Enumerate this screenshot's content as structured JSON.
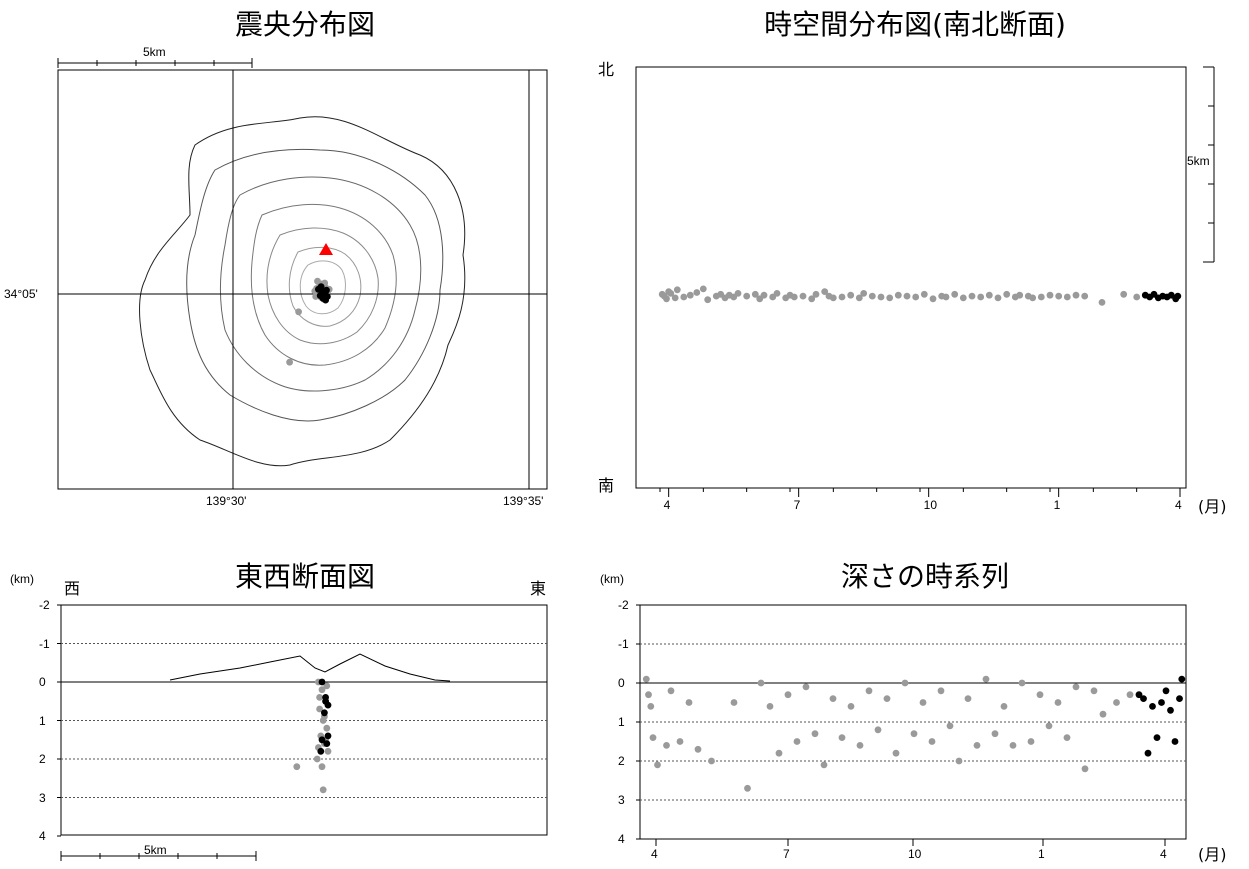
{
  "colors": {
    "past": "#9a9a9a",
    "recent": "#000000",
    "crater": "#ff0000",
    "contour_outer": "#222222",
    "contour_inner": "#8a8a8a"
  },
  "panels": {
    "epicenter": {
      "title": "震央分布図",
      "scale_label": "5km",
      "lat_label": "34°05'",
      "lon_labels": [
        "139°30'",
        "139°35'"
      ]
    },
    "timespace": {
      "title": "時空間分布図(南北断面)",
      "north": "北",
      "south": "南",
      "scale_label": "5km",
      "month_unit": "(月)",
      "month_ticks": [
        "4",
        "7",
        "10",
        "1",
        "4"
      ]
    },
    "eastwest": {
      "title": "東西断面図",
      "west": "西",
      "east": "東",
      "depth_unit": "(km)",
      "depth_ticks": [
        "-2",
        "-1",
        "0",
        "1",
        "2",
        "3",
        "4"
      ],
      "scale_label": "5km"
    },
    "depthtime": {
      "title": "深さの時系列",
      "depth_unit": "(km)",
      "depth_ticks": [
        "-2",
        "-1",
        "0",
        "1",
        "2",
        "3",
        "4"
      ],
      "month_unit": "(月)",
      "month_ticks": [
        "4",
        "7",
        "10",
        "1",
        "4"
      ]
    }
  },
  "chart_data": [
    {
      "type": "scatter",
      "title": "震央分布図",
      "ylabel": "34°05'",
      "xlabel": "139°30'",
      "series": [
        {
          "values": [
            [
              -0.3,
              0.6
            ],
            [
              0.0,
              0.9
            ],
            [
              -0.2,
              0.2
            ],
            [
              0.4,
              0.5
            ],
            [
              -0.6,
              0.4
            ],
            [
              0.2,
              -0.2
            ],
            [
              -0.1,
              -0.6
            ],
            [
              0.3,
              1.0
            ],
            [
              -0.4,
              -0.1
            ],
            [
              0.6,
              0.0
            ],
            [
              -0.8,
              0.1
            ],
            [
              0.1,
              0.3
            ],
            [
              -0.2,
              -0.3
            ],
            [
              0.5,
              -0.4
            ],
            [
              -2.6,
              -2.2
            ],
            [
              -0.5,
              1.2
            ],
            [
              0.2,
              -0.8
            ],
            [
              -0.7,
              -0.5
            ],
            [
              0.8,
              0.3
            ],
            [
              -3.6,
              -7.8
            ]
          ]
        },
        {
          "values": [
            [
              0.0,
              0.1
            ],
            [
              0.3,
              -0.2
            ],
            [
              -0.2,
              -0.4
            ],
            [
              0.5,
              0.2
            ],
            [
              -0.4,
              0.3
            ],
            [
              0.1,
              -0.7
            ],
            [
              0.6,
              -0.5
            ],
            [
              -0.1,
              0.6
            ],
            [
              0.4,
              -0.9
            ]
          ]
        }
      ]
    },
    {
      "type": "scatter",
      "title": "時空間分布図(南北断面)",
      "xlabel": "(月)",
      "x_ticks": [
        "4",
        "7",
        "10",
        "1",
        "4"
      ],
      "series": [
        {
          "values": [
            [
              0.05,
              0.3
            ],
            [
              0.1,
              0.1
            ],
            [
              0.15,
              -0.2
            ],
            [
              0.2,
              0.6
            ],
            [
              0.25,
              0.4
            ],
            [
              0.35,
              -0.1
            ],
            [
              0.4,
              0.8
            ],
            [
              0.55,
              0.0
            ],
            [
              0.7,
              0.2
            ],
            [
              0.85,
              0.5
            ],
            [
              1.0,
              0.9
            ],
            [
              1.1,
              -0.3
            ],
            [
              1.3,
              0.1
            ],
            [
              1.4,
              0.3
            ],
            [
              1.5,
              -0.1
            ],
            [
              1.6,
              0.2
            ],
            [
              1.7,
              0.0
            ],
            [
              1.8,
              0.4
            ],
            [
              2.0,
              0.1
            ],
            [
              2.2,
              0.3
            ],
            [
              2.3,
              -0.2
            ],
            [
              2.4,
              0.2
            ],
            [
              2.6,
              0.0
            ],
            [
              2.7,
              0.4
            ],
            [
              2.9,
              -0.1
            ],
            [
              3.0,
              0.2
            ],
            [
              3.1,
              0.0
            ],
            [
              3.3,
              0.1
            ],
            [
              3.5,
              -0.2
            ],
            [
              3.6,
              0.3
            ],
            [
              3.8,
              0.6
            ],
            [
              3.9,
              0.1
            ],
            [
              4.0,
              -0.1
            ],
            [
              4.2,
              0.0
            ],
            [
              4.4,
              0.2
            ],
            [
              4.6,
              -0.1
            ],
            [
              4.7,
              0.4
            ],
            [
              4.9,
              0.1
            ],
            [
              5.1,
              0.0
            ],
            [
              5.3,
              -0.1
            ],
            [
              5.5,
              0.2
            ],
            [
              5.7,
              0.1
            ],
            [
              5.9,
              0.0
            ],
            [
              6.1,
              0.3
            ],
            [
              6.3,
              -0.2
            ],
            [
              6.5,
              0.1
            ],
            [
              6.6,
              0.0
            ],
            [
              6.8,
              0.3
            ],
            [
              7.0,
              -0.1
            ],
            [
              7.2,
              0.1
            ],
            [
              7.4,
              0.0
            ],
            [
              7.6,
              0.2
            ],
            [
              7.8,
              -0.1
            ],
            [
              8.0,
              0.3
            ],
            [
              8.2,
              0.0
            ],
            [
              8.3,
              0.2
            ],
            [
              8.5,
              0.1
            ],
            [
              8.6,
              -0.1
            ],
            [
              8.8,
              0.0
            ],
            [
              9.0,
              0.2
            ],
            [
              9.2,
              0.1
            ],
            [
              9.4,
              0.0
            ],
            [
              9.6,
              0.2
            ],
            [
              9.8,
              0.1
            ],
            [
              10.2,
              -0.6
            ],
            [
              10.7,
              0.3
            ],
            [
              11.0,
              0.0
            ]
          ]
        },
        {
          "values": [
            [
              11.2,
              0.2
            ],
            [
              11.3,
              0.0
            ],
            [
              11.4,
              0.3
            ],
            [
              11.5,
              -0.1
            ],
            [
              11.6,
              0.1
            ],
            [
              11.7,
              0.0
            ],
            [
              11.8,
              0.2
            ],
            [
              11.9,
              -0.2
            ],
            [
              11.95,
              0.1
            ]
          ]
        }
      ]
    },
    {
      "type": "scatter",
      "title": "東西断面図",
      "xlabel": "5km",
      "ylabel": "(km)",
      "ylim": [
        4,
        -2
      ],
      "series": [
        {
          "values": [
            [
              -0.3,
              0.0
            ],
            [
              0.0,
              0.2
            ],
            [
              0.3,
              0.5
            ],
            [
              -0.2,
              0.7
            ],
            [
              0.1,
              1.0
            ],
            [
              0.4,
              1.2
            ],
            [
              -0.1,
              1.4
            ],
            [
              0.2,
              1.6
            ],
            [
              0.5,
              1.8
            ],
            [
              -0.4,
              2.0
            ],
            [
              0.0,
              2.2
            ],
            [
              0.3,
              1.5
            ],
            [
              -0.2,
              0.4
            ],
            [
              0.4,
              0.1
            ],
            [
              -2.1,
              2.2
            ],
            [
              0.1,
              2.8
            ],
            [
              -0.3,
              1.7
            ],
            [
              0.2,
              0.9
            ]
          ]
        },
        {
          "values": [
            [
              0.0,
              0.0
            ],
            [
              0.3,
              0.4
            ],
            [
              0.5,
              0.6
            ],
            [
              0.2,
              0.8
            ],
            [
              0.5,
              1.4
            ],
            [
              0.4,
              1.6
            ],
            [
              0.0,
              1.5
            ],
            [
              -0.1,
              1.8
            ],
            [
              0.3,
              0.5
            ]
          ]
        }
      ]
    },
    {
      "type": "scatter",
      "title": "深さの時系列",
      "xlabel": "(月)",
      "ylabel": "(km)",
      "ylim": [
        4,
        -2
      ],
      "x_ticks": [
        "4",
        "7",
        "10",
        "1",
        "4"
      ],
      "series": [
        {
          "values": [
            [
              0.05,
              -0.1
            ],
            [
              0.1,
              0.3
            ],
            [
              0.15,
              0.6
            ],
            [
              0.2,
              1.4
            ],
            [
              0.3,
              2.1
            ],
            [
              0.5,
              1.6
            ],
            [
              0.6,
              0.2
            ],
            [
              0.8,
              1.5
            ],
            [
              1.0,
              0.5
            ],
            [
              1.2,
              1.7
            ],
            [
              1.5,
              2.0
            ],
            [
              2.0,
              0.5
            ],
            [
              2.3,
              2.7
            ],
            [
              2.6,
              0.0
            ],
            [
              2.8,
              0.6
            ],
            [
              3.0,
              1.8
            ],
            [
              3.2,
              0.3
            ],
            [
              3.4,
              1.5
            ],
            [
              3.6,
              0.1
            ],
            [
              3.8,
              1.3
            ],
            [
              4.0,
              2.1
            ],
            [
              4.2,
              0.4
            ],
            [
              4.4,
              1.4
            ],
            [
              4.6,
              0.6
            ],
            [
              4.8,
              1.6
            ],
            [
              5.0,
              0.2
            ],
            [
              5.2,
              1.2
            ],
            [
              5.4,
              0.4
            ],
            [
              5.6,
              1.8
            ],
            [
              5.8,
              0.0
            ],
            [
              6.0,
              1.3
            ],
            [
              6.2,
              0.5
            ],
            [
              6.4,
              1.5
            ],
            [
              6.6,
              0.2
            ],
            [
              6.8,
              1.1
            ],
            [
              7.0,
              2.0
            ],
            [
              7.2,
              0.4
            ],
            [
              7.4,
              1.6
            ],
            [
              7.6,
              -0.1
            ],
            [
              7.8,
              1.3
            ],
            [
              8.0,
              0.6
            ],
            [
              8.2,
              1.6
            ],
            [
              8.4,
              0.0
            ],
            [
              8.6,
              1.5
            ],
            [
              8.8,
              0.3
            ],
            [
              9.0,
              1.1
            ],
            [
              9.2,
              0.5
            ],
            [
              9.4,
              1.4
            ],
            [
              9.6,
              0.1
            ],
            [
              9.8,
              2.2
            ],
            [
              10.0,
              0.2
            ],
            [
              10.2,
              0.8
            ],
            [
              10.5,
              0.5
            ],
            [
              10.8,
              0.3
            ]
          ]
        },
        {
          "values": [
            [
              11.0,
              0.3
            ],
            [
              11.1,
              0.4
            ],
            [
              11.2,
              1.8
            ],
            [
              11.3,
              0.6
            ],
            [
              11.4,
              1.4
            ],
            [
              11.5,
              0.5
            ],
            [
              11.6,
              0.2
            ],
            [
              11.7,
              0.7
            ],
            [
              11.8,
              1.5
            ],
            [
              11.9,
              0.4
            ],
            [
              11.95,
              -0.1
            ]
          ]
        }
      ]
    }
  ]
}
